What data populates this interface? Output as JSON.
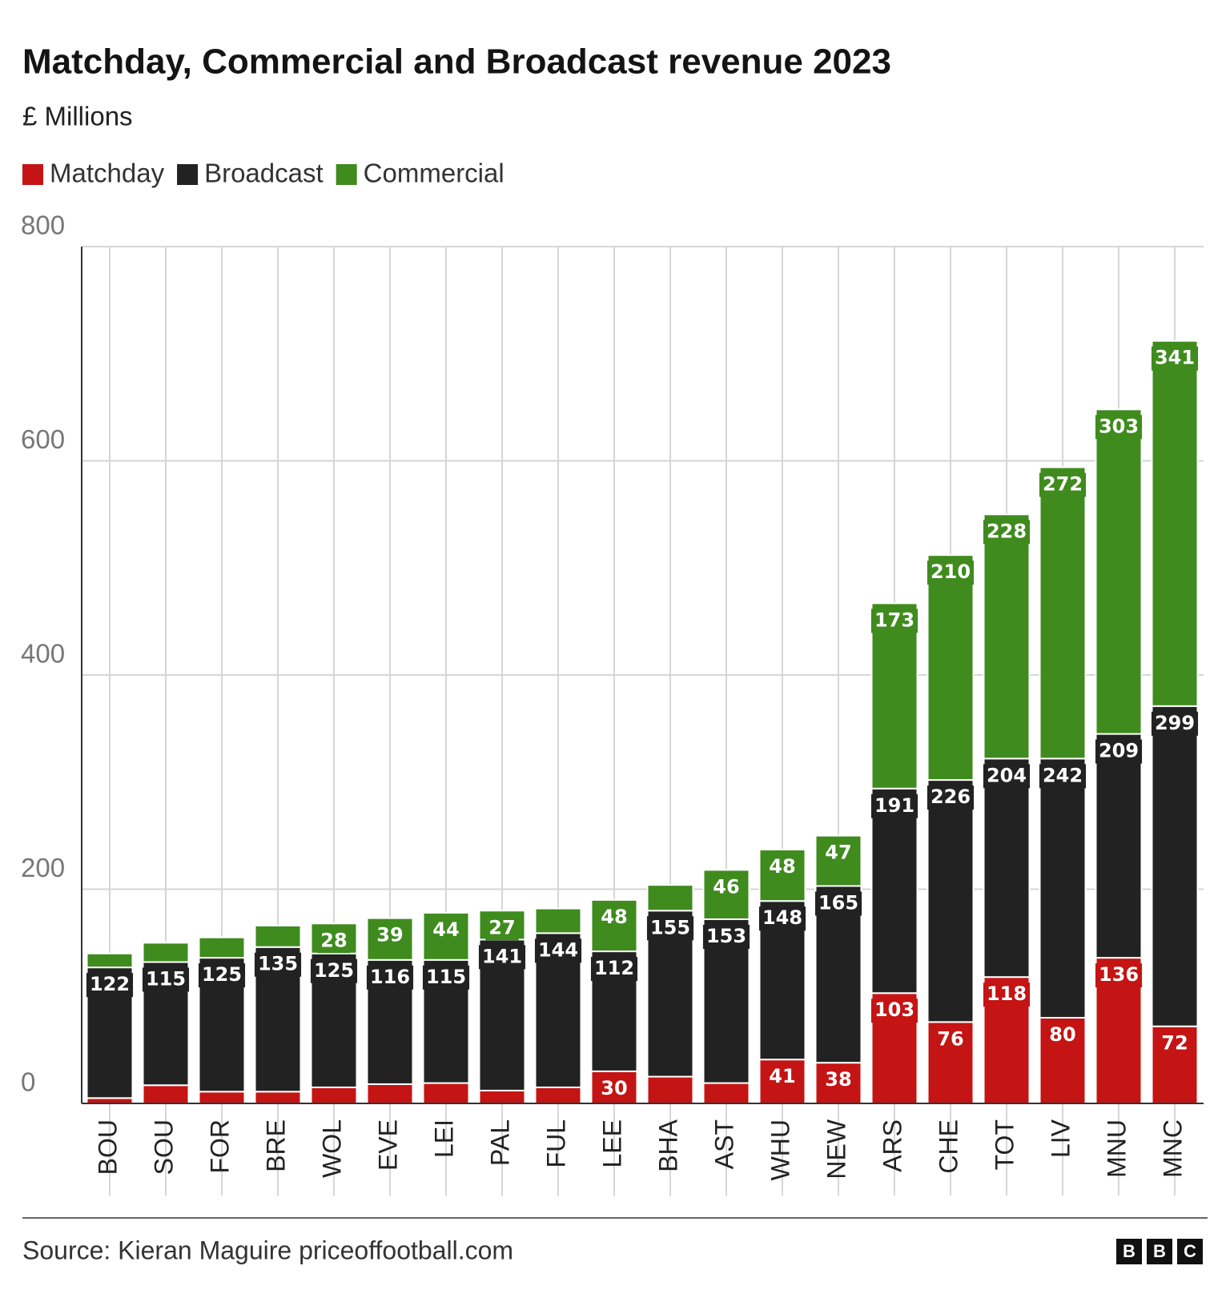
{
  "chart_data": {
    "type": "stacked_bar",
    "title": "Matchday, Commercial and Broadcast revenue 2023",
    "subtitle": "£ Millions",
    "source": "Source: Kieran Maguire priceoffootball.com",
    "logo": [
      "B",
      "B",
      "C"
    ],
    "categories": [
      "BOU",
      "SOU",
      "FOR",
      "BRE",
      "WOL",
      "EVE",
      "LEI",
      "PAL",
      "FUL",
      "LEE",
      "BHA",
      "AST",
      "WHU",
      "NEW",
      "ARS",
      "CHE",
      "TOT",
      "LIV",
      "MNU",
      "MNC"
    ],
    "series": [
      {
        "name": "Matchday",
        "color": "#c41414",
        "values": [
          5,
          17,
          11,
          11,
          15,
          18,
          19,
          12,
          15,
          30,
          25,
          19,
          41,
          38,
          103,
          76,
          118,
          80,
          136,
          72
        ]
      },
      {
        "name": "Broadcast",
        "color": "#222222",
        "values": [
          122,
          115,
          125,
          135,
          125,
          116,
          115,
          141,
          144,
          112,
          155,
          153,
          148,
          165,
          191,
          226,
          204,
          242,
          209,
          299
        ]
      },
      {
        "name": "Commercial",
        "color": "#3f8b1e",
        "values": [
          13,
          18,
          19,
          20,
          28,
          39,
          44,
          27,
          23,
          48,
          24,
          46,
          48,
          47,
          173,
          210,
          228,
          272,
          303,
          341
        ]
      }
    ],
    "ylim": [
      0,
      800
    ],
    "yticks": [
      0,
      200,
      400,
      600,
      800
    ],
    "grid": true,
    "legend": "top-left"
  }
}
